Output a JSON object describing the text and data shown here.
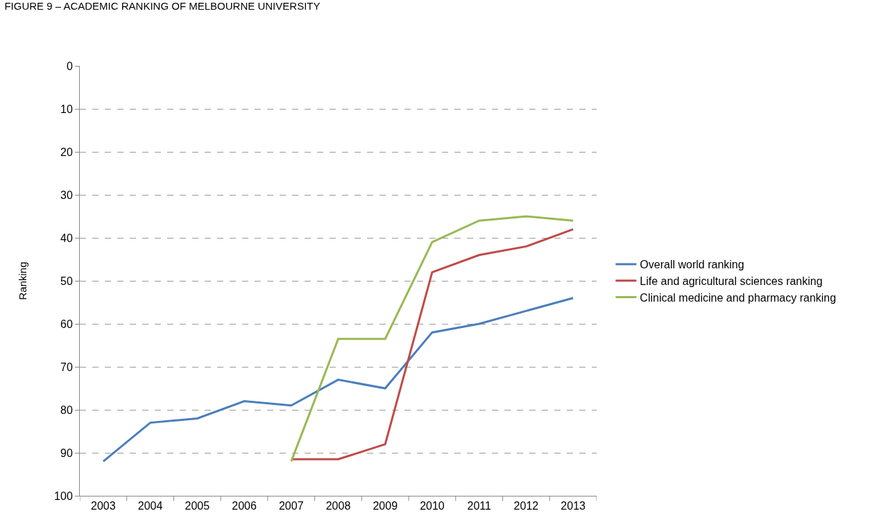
{
  "chart_data": {
    "type": "line",
    "title": "FIGURE 9 – ACADEMIC RANKING OF MELBOURNE UNIVERSITY",
    "ylabel": "Ranking",
    "categories": [
      "2003",
      "2004",
      "2005",
      "2006",
      "2007",
      "2008",
      "2009",
      "2010",
      "2011",
      "2012",
      "2013"
    ],
    "series": [
      {
        "name": "Overall world ranking",
        "color": "#4a7ebb",
        "values": [
          92,
          83,
          82,
          78,
          79,
          73,
          75,
          62,
          60,
          57,
          54
        ]
      },
      {
        "name": "Life and agricultural sciences ranking",
        "color": "#be4b48",
        "values": [
          null,
          null,
          null,
          null,
          91.5,
          91.5,
          88,
          48,
          44,
          42,
          38
        ]
      },
      {
        "name": "Clinical medicine and pharmacy ranking",
        "color": "#98b954",
        "values": [
          null,
          null,
          null,
          null,
          92,
          63.5,
          63.5,
          41,
          36,
          35,
          36
        ]
      }
    ],
    "ylim": [
      100,
      0
    ],
    "yticks": [
      0,
      10,
      20,
      30,
      40,
      50,
      60,
      70,
      80,
      90,
      100
    ],
    "grid": "y",
    "legend": "right",
    "marker": "none",
    "line_style": "solid"
  }
}
